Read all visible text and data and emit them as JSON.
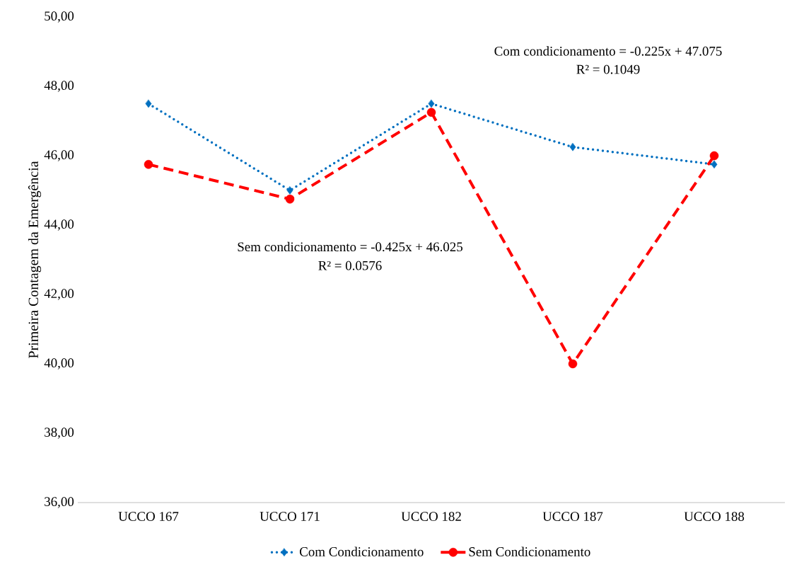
{
  "chart_data": {
    "type": "line",
    "ylabel": "Primeira Contagem da Emergência",
    "categories": [
      "UCCO 167",
      "UCCO 171",
      "UCCO 182",
      "UCCO 187",
      "UCCO 188"
    ],
    "series": [
      {
        "name": "Com Condicionamento",
        "color": "#0070c0",
        "marker": "diamond",
        "line_style": "dotted",
        "values": [
          47.5,
          45.0,
          47.5,
          46.25,
          45.75
        ]
      },
      {
        "name": "Sem Condicionamento",
        "color": "#ff0000",
        "marker": "circle",
        "line_style": "dashed",
        "values": [
          45.75,
          44.75,
          47.25,
          40.0,
          46.0
        ]
      }
    ],
    "ylim": [
      36,
      50
    ],
    "yticks": [
      {
        "value": 36,
        "label": "36,00"
      },
      {
        "value": 38,
        "label": "38,00"
      },
      {
        "value": 40,
        "label": "40,00"
      },
      {
        "value": 42,
        "label": "42,00"
      },
      {
        "value": 44,
        "label": "44,00"
      },
      {
        "value": 46,
        "label": "46,00"
      },
      {
        "value": 48,
        "label": "48,00"
      },
      {
        "value": 50,
        "label": "50,00"
      }
    ],
    "annotations": [
      "Com condicionamento = -0.225x + 47.075",
      "R² = 0.1049",
      "Sem condicionamento = -0.425x + 46.025",
      "R² = 0.0576"
    ],
    "grid": false,
    "legend": "bottom"
  }
}
